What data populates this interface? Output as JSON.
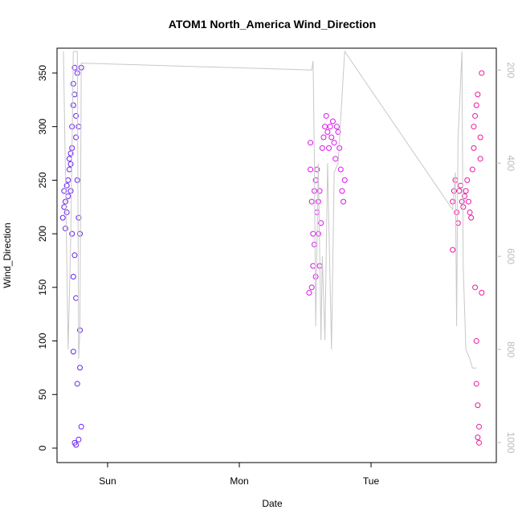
{
  "chart_data": {
    "type": "scatter",
    "title": "ATOM1 North_America Wind_Direction",
    "x_label": "Date",
    "y_label": "Wind_Direction",
    "xlim": [
      0.616,
      3.951
    ],
    "xticks": [
      {
        "value": 1,
        "label": "Sun"
      },
      {
        "value": 2,
        "label": "Mon"
      },
      {
        "value": 3,
        "label": "Tue"
      }
    ],
    "ylim": [
      -13.5,
      373.2
    ],
    "yticks": [
      0,
      50,
      100,
      150,
      200,
      250,
      300,
      350
    ],
    "y2lim": [
      1043,
      153
    ],
    "y2ticks": [
      200,
      400,
      600,
      800,
      1000
    ],
    "y2_color": "#bbbbbb",
    "series": [
      {
        "color": "#6a1ff0",
        "x": [
          0.66,
          0.67,
          0.67,
          0.68,
          0.68,
          0.69,
          0.69,
          0.7,
          0.7,
          0.71,
          0.71,
          0.72,
          0.72,
          0.72,
          0.73,
          0.73,
          0.73,
          0.74,
          0.74,
          0.74,
          0.74,
          0.75,
          0.75,
          0.75,
          0.75,
          0.76,
          0.76,
          0.76,
          0.76,
          0.77,
          0.77,
          0.77,
          0.78,
          0.78,
          0.78,
          0.79,
          0.79,
          0.79,
          0.8,
          0.8
        ],
        "values": [
          215,
          225,
          240,
          205,
          230,
          245,
          220,
          250,
          235,
          260,
          270,
          265,
          275,
          240,
          280,
          300,
          200,
          320,
          340,
          160,
          90,
          355,
          330,
          5,
          180,
          310,
          290,
          140,
          3,
          350,
          250,
          60,
          300,
          8,
          215,
          110,
          200,
          75,
          355,
          20
        ]
      },
      {
        "color": "#e010f0",
        "x": [
          2.53,
          2.54,
          2.54,
          2.55,
          2.55,
          2.56,
          2.56,
          2.57,
          2.57,
          2.58,
          2.58,
          2.59,
          2.59,
          2.6,
          2.6,
          2.61,
          2.61,
          2.62,
          2.63,
          2.64,
          2.65,
          2.66,
          2.67,
          2.68,
          2.69,
          2.7,
          2.71,
          2.72,
          2.73,
          2.74,
          2.75,
          2.76,
          2.77,
          2.78,
          2.79,
          2.8
        ],
        "values": [
          145,
          260,
          285,
          150,
          230,
          200,
          170,
          240,
          190,
          250,
          160,
          220,
          260,
          230,
          200,
          170,
          240,
          210,
          280,
          290,
          300,
          310,
          295,
          280,
          300,
          290,
          305,
          285,
          270,
          300,
          295,
          280,
          260,
          240,
          230,
          250
        ]
      },
      {
        "color": "#e8189e",
        "x": [
          3.62,
          3.62,
          3.63,
          3.64,
          3.65,
          3.66,
          3.67,
          3.68,
          3.69,
          3.7,
          3.71,
          3.72,
          3.73,
          3.74,
          3.75,
          3.76,
          3.77,
          3.78,
          3.78,
          3.79,
          3.79,
          3.8,
          3.8,
          3.8,
          3.81,
          3.81,
          3.81,
          3.82,
          3.82,
          3.83,
          3.83,
          3.84,
          3.84
        ],
        "values": [
          185,
          230,
          240,
          250,
          220,
          210,
          240,
          245,
          230,
          225,
          235,
          240,
          250,
          230,
          220,
          215,
          260,
          280,
          300,
          310,
          150,
          320,
          100,
          60,
          330,
          40,
          10,
          20,
          5,
          290,
          270,
          145,
          350
        ]
      },
      {
        "type": "line",
        "axis": "y2",
        "color": "#c8c8c8",
        "x": [
          0.665,
          0.69,
          0.7,
          0.72,
          0.74,
          0.77,
          0.78,
          0.79,
          0.8,
          2.55,
          2.56,
          2.57,
          2.58,
          2.6,
          2.62,
          2.63,
          2.65,
          2.67,
          2.7,
          2.72,
          2.75,
          2.8,
          3.62,
          3.64,
          3.65,
          3.66,
          3.69,
          3.7,
          3.72,
          3.75,
          3.77,
          3.8
        ],
        "values": [
          160,
          600,
          800,
          560,
          160,
          160,
          820,
          760,
          185,
          200,
          180,
          400,
          750,
          400,
          780,
          600,
          780,
          400,
          800,
          420,
          400,
          160,
          500,
          420,
          750,
          350,
          160,
          620,
          800,
          820,
          840,
          840
        ]
      }
    ]
  }
}
